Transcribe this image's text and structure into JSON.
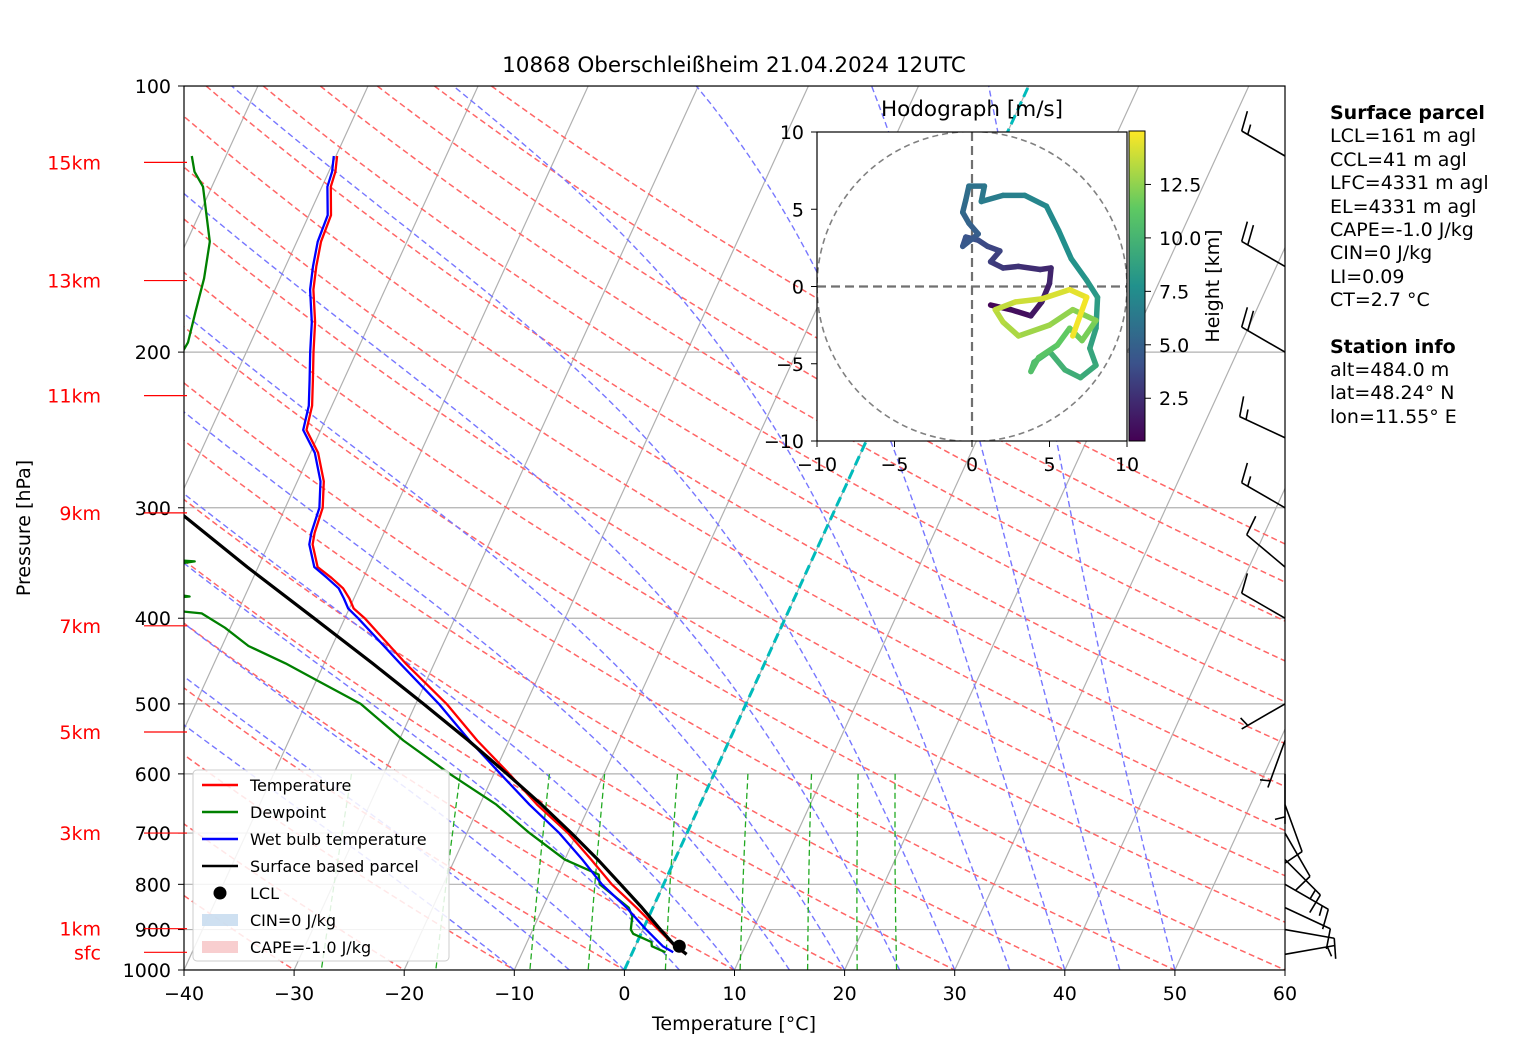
{
  "title": "10868 Oberschleißheim 21.04.2024 12UTC",
  "colors": {
    "temperature": "#ff0000",
    "dewpoint": "#008000",
    "wetbulb": "#0000ff",
    "parcel": "#000000",
    "dry_adiabat": "#ff6666",
    "moist_adiabat": "#7777ff",
    "mixing_ratio": "#22aa22",
    "isotherm_zero": "#00bbbb",
    "height_label": "#ff0000",
    "cin_fill": "#c6dbef",
    "cape_fill": "#f7c6c7"
  },
  "chart_data": [
    {
      "type": "line",
      "subtype": "skew-t log-p",
      "title": "10868 Oberschleißheim 21.04.2024 12UTC",
      "xlabel": "Temperature [°C]",
      "ylabel": "Pressure [hPa]",
      "xlim": [
        -40,
        60
      ],
      "ylim": [
        1000,
        100
      ],
      "y_scale": "log",
      "grid": true,
      "legend_position": "lower-left",
      "x_ticks": [
        "−40",
        "−30",
        "−20",
        "−10",
        "0",
        "10",
        "20",
        "30",
        "40",
        "50",
        "60"
      ],
      "y_ticks": [
        {
          "p": 100,
          "label": "100"
        },
        {
          "p": 200,
          "label": "200"
        },
        {
          "p": 300,
          "label": "300"
        },
        {
          "p": 400,
          "label": "400"
        },
        {
          "p": 500,
          "label": "500"
        },
        {
          "p": 600,
          "label": "600"
        },
        {
          "p": 700,
          "label": "700"
        },
        {
          "p": 800,
          "label": "800"
        },
        {
          "p": 900,
          "label": "900"
        },
        {
          "p": 1000,
          "label": "1000"
        }
      ],
      "height_labels": [
        {
          "label": "sfc",
          "p": 955
        },
        {
          "label": "1km",
          "p": 898
        },
        {
          "label": "3km",
          "p": 700
        },
        {
          "label": "5km",
          "p": 538
        },
        {
          "label": "7km",
          "p": 408
        },
        {
          "label": "9km",
          "p": 304
        },
        {
          "label": "11km",
          "p": 224
        },
        {
          "label": "13km",
          "p": 166
        },
        {
          "label": "15km",
          "p": 122
        }
      ],
      "legend": [
        {
          "label": "Temperature",
          "kind": "line",
          "color": "#ff0000"
        },
        {
          "label": "Dewpoint",
          "kind": "line",
          "color": "#008000"
        },
        {
          "label": "Wet bulb temperature",
          "kind": "line",
          "color": "#0000ff"
        },
        {
          "label": "Surface based parcel",
          "kind": "line",
          "color": "#000000"
        },
        {
          "label": "LCL",
          "kind": "dot",
          "color": "#000000"
        },
        {
          "label": "CIN=0 J/kg",
          "kind": "patch",
          "color": "#c6dbef"
        },
        {
          "label": "CAPE=-1.0 J/kg",
          "kind": "patch",
          "color": "#f7c6c7"
        }
      ],
      "series": [
        {
          "name": "Temperature",
          "points": [
            [
              955,
              4.6
            ],
            [
              940,
              3.6
            ],
            [
              900,
              1.4
            ],
            [
              850,
              -1.5
            ],
            [
              800,
              -4.7
            ],
            [
              750,
              -7.6
            ],
            [
              700,
              -10.8
            ],
            [
              650,
              -14.8
            ],
            [
              600,
              -18.6
            ],
            [
              550,
              -22.9
            ],
            [
              500,
              -27.2
            ],
            [
              450,
              -32.6
            ],
            [
              400,
              -38.2
            ],
            [
              390,
              -39.6
            ],
            [
              380,
              -40.4
            ],
            [
              370,
              -41.4
            ],
            [
              360,
              -42.9
            ],
            [
              350,
              -44.6
            ],
            [
              330,
              -46.0
            ],
            [
              320,
              -46.3
            ],
            [
              300,
              -46.6
            ],
            [
              280,
              -47.6
            ],
            [
              260,
              -49.3
            ],
            [
              245,
              -51.3
            ],
            [
              230,
              -51.8
            ],
            [
              215,
              -52.8
            ],
            [
              200,
              -53.9
            ],
            [
              185,
              -55.0
            ],
            [
              170,
              -56.5
            ],
            [
              160,
              -57.2
            ],
            [
              150,
              -57.8
            ],
            [
              140,
              -58.0
            ],
            [
              130,
              -59.2
            ],
            [
              125,
              -59.4
            ],
            [
              120,
              -59.9
            ]
          ]
        },
        {
          "name": "Dewpoint",
          "points": [
            [
              955,
              3.0
            ],
            [
              940,
              1.5
            ],
            [
              930,
              1.3
            ],
            [
              910,
              -0.7
            ],
            [
              900,
              -1.1
            ],
            [
              870,
              -1.5
            ],
            [
              850,
              -2.2
            ],
            [
              800,
              -5.8
            ],
            [
              780,
              -6.3
            ],
            [
              750,
              -10.0
            ],
            [
              700,
              -14.3
            ],
            [
              650,
              -18.5
            ],
            [
              600,
              -24.0
            ],
            [
              550,
              -29.6
            ],
            [
              500,
              -35.0
            ],
            [
              470,
              -40.0
            ],
            [
              450,
              -43.5
            ],
            [
              430,
              -47.6
            ],
            [
              410,
              -50.5
            ],
            [
              395,
              -53.2
            ],
            [
              385,
              -62.5
            ],
            [
              378,
              -55.0
            ],
            [
              370,
              -60.6
            ],
            [
              360,
              -58.5
            ],
            [
              355,
              -62.5
            ],
            [
              345,
              -56.0
            ],
            [
              338,
              -66.0
            ],
            [
              325,
              -66.0
            ],
            [
              300,
              -64.5
            ],
            [
              298,
              -67.0
            ],
            [
              290,
              -66.7
            ],
            [
              275,
              -68.3
            ],
            [
              265,
              -70.5
            ],
            [
              255,
              -70.8
            ],
            [
              250,
              -70.0
            ],
            [
              240,
              -67.1
            ],
            [
              225,
              -66.8
            ],
            [
              210,
              -66.0
            ],
            [
              195,
              -65.7
            ],
            [
              180,
              -66.3
            ],
            [
              165,
              -66.9
            ],
            [
              150,
              -67.9
            ],
            [
              140,
              -69.3
            ],
            [
              130,
              -70.8
            ],
            [
              125,
              -72.2
            ],
            [
              120,
              -73.1
            ]
          ]
        },
        {
          "name": "Wet bulb temperature",
          "points": [
            [
              955,
              3.7
            ],
            [
              940,
              2.5
            ],
            [
              900,
              0.3
            ],
            [
              850,
              -2.4
            ],
            [
              800,
              -5.6
            ],
            [
              750,
              -8.4
            ],
            [
              700,
              -11.6
            ],
            [
              650,
              -15.5
            ],
            [
              600,
              -19.4
            ],
            [
              550,
              -23.6
            ],
            [
              500,
              -27.9
            ],
            [
              450,
              -33.1
            ],
            [
              400,
              -38.8
            ],
            [
              390,
              -40.1
            ],
            [
              380,
              -40.9
            ],
            [
              370,
              -41.8
            ],
            [
              360,
              -43.3
            ],
            [
              350,
              -44.9
            ],
            [
              330,
              -46.3
            ],
            [
              320,
              -46.6
            ],
            [
              300,
              -46.9
            ],
            [
              280,
              -47.9
            ],
            [
              260,
              -49.6
            ],
            [
              245,
              -51.6
            ],
            [
              230,
              -52.1
            ],
            [
              215,
              -53.1
            ],
            [
              200,
              -54.2
            ],
            [
              185,
              -55.3
            ],
            [
              170,
              -56.8
            ],
            [
              160,
              -57.5
            ],
            [
              150,
              -58.1
            ],
            [
              140,
              -58.3
            ],
            [
              130,
              -59.5
            ],
            [
              125,
              -59.7
            ],
            [
              120,
              -60.2
            ]
          ]
        },
        {
          "name": "Surface based parcel",
          "points": [
            [
              960,
              5.0
            ],
            [
              935,
              3.4
            ],
            [
              900,
              1.6
            ],
            [
              850,
              -1.0
            ],
            [
              800,
              -3.9
            ],
            [
              750,
              -7.0
            ],
            [
              700,
              -10.5
            ],
            [
              650,
              -14.4
            ],
            [
              600,
              -18.8
            ],
            [
              550,
              -23.7
            ],
            [
              500,
              -29.3
            ],
            [
              450,
              -35.6
            ],
            [
              400,
              -42.8
            ],
            [
              350,
              -51.0
            ],
            [
              300,
              -60.1
            ],
            [
              250,
              -70.0
            ],
            [
              200,
              -81.0
            ]
          ]
        }
      ],
      "lcl": {
        "p": 940,
        "t": 4.0
      },
      "zero_isotherm": {
        "t": 0
      },
      "dry_adiabats_theta_C": [
        -30,
        -20,
        -10,
        0,
        10,
        20,
        30,
        40,
        50,
        60,
        70,
        80,
        90,
        100,
        110,
        120,
        130,
        140,
        150,
        160
      ],
      "moist_adiabats_T1000_C": [
        -10,
        -5,
        0,
        5,
        10,
        15,
        20,
        25,
        30,
        35,
        40,
        45,
        50
      ],
      "mixing_ratios_gkg": [
        0.4,
        1,
        2,
        3,
        5,
        8,
        12,
        16,
        20
      ],
      "wind_barbs": [
        {
          "p": 960,
          "dir": 80,
          "speed_kt": 5
        },
        {
          "p": 900,
          "dir": 100,
          "speed_kt": 10
        },
        {
          "p": 850,
          "dir": 115,
          "speed_kt": 10
        },
        {
          "p": 800,
          "dir": 120,
          "speed_kt": 15
        },
        {
          "p": 750,
          "dir": 135,
          "speed_kt": 15
        },
        {
          "p": 700,
          "dir": 150,
          "speed_kt": 10
        },
        {
          "p": 650,
          "dir": 160,
          "speed_kt": 10
        },
        {
          "p": 600,
          "dir": 180,
          "speed_kt": 5
        },
        {
          "p": 550,
          "dir": 200,
          "speed_kt": 5
        },
        {
          "p": 500,
          "dir": 240,
          "speed_kt": 5
        },
        {
          "p": 400,
          "dir": 300,
          "speed_kt": 10
        },
        {
          "p": 350,
          "dir": 310,
          "speed_kt": 10
        },
        {
          "p": 300,
          "dir": 300,
          "speed_kt": 15
        },
        {
          "p": 250,
          "dir": 295,
          "speed_kt": 15
        },
        {
          "p": 200,
          "dir": 300,
          "speed_kt": 20
        },
        {
          "p": 160,
          "dir": 300,
          "speed_kt": 20
        },
        {
          "p": 120,
          "dir": 300,
          "speed_kt": 15
        }
      ]
    },
    {
      "type": "line",
      "subtype": "hodograph",
      "title": "Hodograph [m/s]",
      "xlim": [
        -10,
        10
      ],
      "ylim": [
        -10,
        10
      ],
      "x_ticks": [
        "−10",
        "−5",
        "0",
        "5",
        "10"
      ],
      "y_ticks": [
        "−10",
        "−5",
        "0",
        "5",
        "10"
      ],
      "colorbar": {
        "label": "Height [km]",
        "ticks": [
          "2.5",
          "5.0",
          "7.5",
          "10.0",
          "12.5"
        ],
        "range": [
          0.5,
          15
        ],
        "colormap": "viridis"
      },
      "points_uvh": [
        [
          1.2,
          -1.2,
          0.5
        ],
        [
          2.5,
          -1.5,
          0.9
        ],
        [
          3.8,
          -1.9,
          1.3
        ],
        [
          4.5,
          -1.0,
          1.6
        ],
        [
          5.0,
          0.2,
          1.9
        ],
        [
          5.1,
          1.2,
          2.1
        ],
        [
          4.4,
          1.1,
          2.3
        ],
        [
          3.0,
          1.3,
          2.6
        ],
        [
          2.0,
          1.2,
          2.9
        ],
        [
          1.2,
          1.6,
          3.1
        ],
        [
          1.8,
          2.3,
          3.4
        ],
        [
          1.0,
          2.6,
          3.6
        ],
        [
          0.4,
          3.0,
          3.9
        ],
        [
          -0.4,
          3.2,
          4.2
        ],
        [
          -0.6,
          2.6,
          4.4
        ],
        [
          0.4,
          3.4,
          4.7
        ],
        [
          -0.2,
          4.1,
          5.0
        ],
        [
          -0.6,
          4.8,
          5.3
        ],
        [
          -0.4,
          5.6,
          5.6
        ],
        [
          -0.2,
          6.5,
          5.8
        ],
        [
          0.8,
          6.5,
          6.1
        ],
        [
          0.6,
          5.5,
          6.4
        ],
        [
          2.0,
          5.9,
          6.7
        ],
        [
          3.4,
          5.9,
          6.9
        ],
        [
          4.8,
          5.2,
          7.2
        ],
        [
          5.6,
          3.6,
          7.5
        ],
        [
          6.4,
          1.8,
          7.8
        ],
        [
          7.4,
          0.4,
          8.0
        ],
        [
          8.1,
          -0.7,
          8.3
        ],
        [
          8.0,
          -2.7,
          8.6
        ],
        [
          7.6,
          -4.0,
          8.9
        ],
        [
          8.0,
          -5.1,
          9.2
        ],
        [
          7.0,
          -5.9,
          9.4
        ],
        [
          6.0,
          -5.4,
          9.7
        ],
        [
          5.0,
          -4.2,
          10.0
        ],
        [
          4.0,
          -4.9,
          10.3
        ],
        [
          3.8,
          -5.5,
          10.6
        ],
        [
          4.3,
          -4.6,
          10.9
        ],
        [
          5.5,
          -3.8,
          11.2
        ],
        [
          6.3,
          -2.7,
          11.5
        ],
        [
          7.1,
          -3.5,
          11.8
        ],
        [
          8.0,
          -2.2,
          12.1
        ],
        [
          6.5,
          -1.5,
          12.4
        ],
        [
          5.0,
          -2.5,
          12.7
        ],
        [
          3.0,
          -3.2,
          13.0
        ],
        [
          2.0,
          -2.3,
          13.3
        ],
        [
          1.5,
          -1.5,
          13.5
        ],
        [
          2.8,
          -1.0,
          13.8
        ],
        [
          4.5,
          -0.8,
          14.0
        ],
        [
          6.3,
          -0.2,
          14.3
        ],
        [
          7.4,
          -0.7,
          14.6
        ],
        [
          6.5,
          -3.2,
          14.9
        ]
      ]
    }
  ],
  "side": {
    "surface_header": "Surface parcel",
    "lcl": "LCL=161 m agl",
    "ccl": "CCL=41 m agl",
    "lfc": "LFC=4331 m agl",
    "el": "EL=4331 m agl",
    "cape": "CAPE=-1.0 J/kg",
    "cin": "CIN=0 J/kg",
    "li": "LI=0.09",
    "ct": "CT=2.7 °C",
    "station_header": "Station info",
    "alt": "alt=484.0 m",
    "lat": "lat=48.24° N",
    "lon": "lon=11.55° E"
  }
}
